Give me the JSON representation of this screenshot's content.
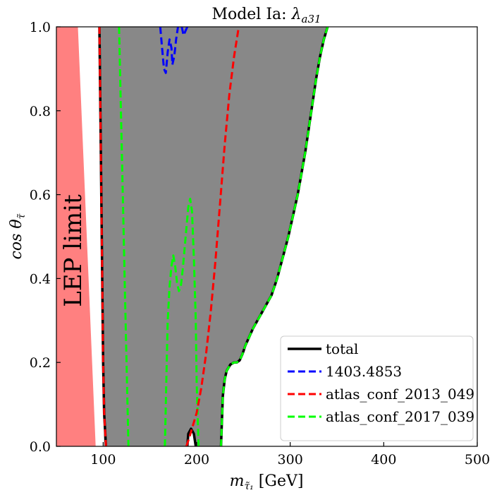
{
  "chart_data": {
    "type": "line",
    "title": "Model Ia: λ_a31",
    "title_main": "Model Ia: ",
    "title_symbol": "λ",
    "title_sub": "a31",
    "xlabel": "m_τ̃1 [GeV]",
    "xlabel_main": "m",
    "xlabel_sub": "τ̃₁",
    "xlabel_unit": " [GeV]",
    "ylabel": "cos θ_τ̃",
    "ylabel_main": "cos θ",
    "ylabel_sub": "τ̃",
    "xlim": [
      50,
      500
    ],
    "ylim": [
      0,
      1
    ],
    "x_ticks": [
      "100",
      "200",
      "300",
      "400",
      "500"
    ],
    "x_tick_values": [
      100,
      200,
      300,
      400,
      500
    ],
    "y_ticks": [
      "0.0",
      "0.2",
      "0.4",
      "0.6",
      "0.8",
      "1.0"
    ],
    "y_tick_values": [
      0,
      0.2,
      0.4,
      0.6,
      0.8,
      1.0
    ],
    "grid": false,
    "legend_position": "lower-right",
    "annotation": "LEP limit",
    "lep_region": {
      "color": "#ff8080",
      "polygon": [
        [
          50,
          0
        ],
        [
          92,
          0
        ],
        [
          73,
          1
        ],
        [
          50,
          1
        ]
      ]
    },
    "excluded_region": {
      "color": "#888888",
      "polygon": [
        [
          101,
          0
        ],
        [
          103,
          0
        ],
        [
          130,
          0
        ],
        [
          190,
          0
        ],
        [
          191,
          0.03
        ],
        [
          194,
          0.042
        ],
        [
          197,
          0.03
        ],
        [
          199,
          0
        ],
        [
          226,
          0
        ],
        [
          227,
          0.06
        ],
        [
          228,
          0.12
        ],
        [
          230,
          0.16
        ],
        [
          232,
          0.18
        ],
        [
          236,
          0.195
        ],
        [
          240,
          0.2
        ],
        [
          243,
          0.2
        ],
        [
          246,
          0.205
        ],
        [
          249,
          0.22
        ],
        [
          252,
          0.24
        ],
        [
          256,
          0.26
        ],
        [
          260,
          0.28
        ],
        [
          265,
          0.3
        ],
        [
          270,
          0.32
        ],
        [
          275,
          0.34
        ],
        [
          280,
          0.36
        ],
        [
          286,
          0.4
        ],
        [
          292,
          0.45
        ],
        [
          298,
          0.5
        ],
        [
          304,
          0.56
        ],
        [
          308,
          0.6
        ],
        [
          312,
          0.65
        ],
        [
          316,
          0.7
        ],
        [
          320,
          0.76
        ],
        [
          324,
          0.82
        ],
        [
          328,
          0.88
        ],
        [
          332,
          0.93
        ],
        [
          336,
          0.97
        ],
        [
          340,
          1.0
        ],
        [
          96,
          1.0
        ],
        [
          97,
          0.8
        ],
        [
          98,
          0.6
        ],
        [
          99,
          0.4
        ],
        [
          100,
          0.2
        ]
      ]
    },
    "series": [
      {
        "name": "total",
        "color": "#000000",
        "dash": "solid",
        "segments": [
          [
            [
              96,
              1.0
            ],
            [
              97,
              0.8
            ],
            [
              98,
              0.6
            ],
            [
              99,
              0.4
            ],
            [
              100,
              0.2
            ],
            [
              101,
              0.08
            ],
            [
              103,
              0
            ]
          ],
          [
            [
              190,
              0
            ],
            [
              191,
              0.03
            ],
            [
              194,
              0.042
            ],
            [
              197,
              0.03
            ],
            [
              199,
              0
            ]
          ],
          [
            [
              226,
              0
            ],
            [
              227,
              0.06
            ],
            [
              228,
              0.12
            ],
            [
              230,
              0.16
            ],
            [
              232,
              0.18
            ],
            [
              236,
              0.195
            ],
            [
              240,
              0.2
            ],
            [
              243,
              0.2
            ],
            [
              246,
              0.205
            ],
            [
              249,
              0.22
            ],
            [
              252,
              0.24
            ],
            [
              256,
              0.26
            ],
            [
              260,
              0.28
            ],
            [
              265,
              0.3
            ],
            [
              270,
              0.32
            ],
            [
              275,
              0.34
            ],
            [
              280,
              0.36
            ],
            [
              286,
              0.4
            ],
            [
              292,
              0.45
            ],
            [
              298,
              0.5
            ],
            [
              304,
              0.56
            ],
            [
              308,
              0.6
            ],
            [
              312,
              0.65
            ],
            [
              316,
              0.7
            ],
            [
              320,
              0.76
            ],
            [
              324,
              0.82
            ],
            [
              328,
              0.88
            ],
            [
              332,
              0.93
            ],
            [
              336,
              0.97
            ],
            [
              340,
              1.0
            ]
          ]
        ]
      },
      {
        "name": "1403.4853",
        "color": "#0000ff",
        "dash": "dashed",
        "segments": [
          [
            [
              161,
              1.0
            ],
            [
              163,
              0.95
            ],
            [
              165,
              0.9
            ],
            [
              167,
              0.89
            ],
            [
              169,
              0.94
            ],
            [
              171,
              0.97
            ],
            [
              173,
              0.95
            ],
            [
              174,
              0.91
            ],
            [
              176,
              0.93
            ],
            [
              178,
              0.97
            ],
            [
              180,
              1.0
            ]
          ],
          [
            [
              184,
              1.0
            ],
            [
              186,
              0.98
            ],
            [
              188,
              0.99
            ],
            [
              190,
              1.0
            ]
          ]
        ]
      },
      {
        "name": "atlas_conf_2013_049",
        "color": "#ff0000",
        "dash": "dashed",
        "segments": [
          [
            [
              96,
              1.0
            ],
            [
              97,
              0.8
            ],
            [
              98,
              0.6
            ],
            [
              99,
              0.4
            ],
            [
              100,
              0.2
            ],
            [
              101,
              0.08
            ],
            [
              103,
              0
            ]
          ],
          [
            [
              189,
              0
            ],
            [
              192,
              0.02
            ],
            [
              196,
              0.05
            ],
            [
              200,
              0.08
            ],
            [
              205,
              0.14
            ],
            [
              210,
              0.22
            ],
            [
              215,
              0.32
            ],
            [
              220,
              0.44
            ],
            [
              225,
              0.58
            ],
            [
              230,
              0.72
            ],
            [
              235,
              0.84
            ],
            [
              240,
              0.93
            ],
            [
              245,
              1.0
            ]
          ]
        ]
      },
      {
        "name": "atlas_conf_2017_039",
        "color": "#00ff00",
        "dash": "dashed",
        "segments": [
          [
            [
              117,
              1.0
            ],
            [
              119,
              0.8
            ],
            [
              121,
              0.6
            ],
            [
              123,
              0.4
            ],
            [
              125,
              0.2
            ],
            [
              127,
              0
            ]
          ],
          [
            [
              166,
              0
            ],
            [
              167,
              0.1
            ],
            [
              168,
              0.2
            ],
            [
              169,
              0.3
            ],
            [
              171,
              0.38
            ],
            [
              173,
              0.43
            ],
            [
              175,
              0.455
            ],
            [
              177,
              0.43
            ],
            [
              179,
              0.39
            ],
            [
              181,
              0.37
            ],
            [
              183,
              0.38
            ],
            [
              185,
              0.42
            ],
            [
              187,
              0.47
            ],
            [
              189,
              0.52
            ],
            [
              191,
              0.57
            ],
            [
              193,
              0.59
            ],
            [
              195,
              0.56
            ],
            [
              197,
              0.45
            ],
            [
              199,
              0.3
            ],
            [
              200,
              0.15
            ],
            [
              202,
              0
            ]
          ],
          [
            [
              226,
              0
            ],
            [
              227,
              0.06
            ],
            [
              228,
              0.12
            ],
            [
              230,
              0.16
            ],
            [
              232,
              0.18
            ],
            [
              236,
              0.195
            ],
            [
              240,
              0.2
            ],
            [
              243,
              0.2
            ],
            [
              246,
              0.205
            ],
            [
              249,
              0.22
            ],
            [
              252,
              0.24
            ],
            [
              256,
              0.26
            ],
            [
              260,
              0.28
            ],
            [
              265,
              0.3
            ],
            [
              270,
              0.32
            ],
            [
              275,
              0.34
            ],
            [
              280,
              0.36
            ],
            [
              286,
              0.4
            ],
            [
              292,
              0.45
            ],
            [
              298,
              0.5
            ],
            [
              304,
              0.56
            ],
            [
              308,
              0.6
            ],
            [
              312,
              0.65
            ],
            [
              316,
              0.7
            ],
            [
              320,
              0.76
            ],
            [
              324,
              0.82
            ],
            [
              328,
              0.88
            ],
            [
              332,
              0.93
            ],
            [
              336,
              0.97
            ],
            [
              340,
              1.0
            ]
          ]
        ]
      }
    ]
  }
}
